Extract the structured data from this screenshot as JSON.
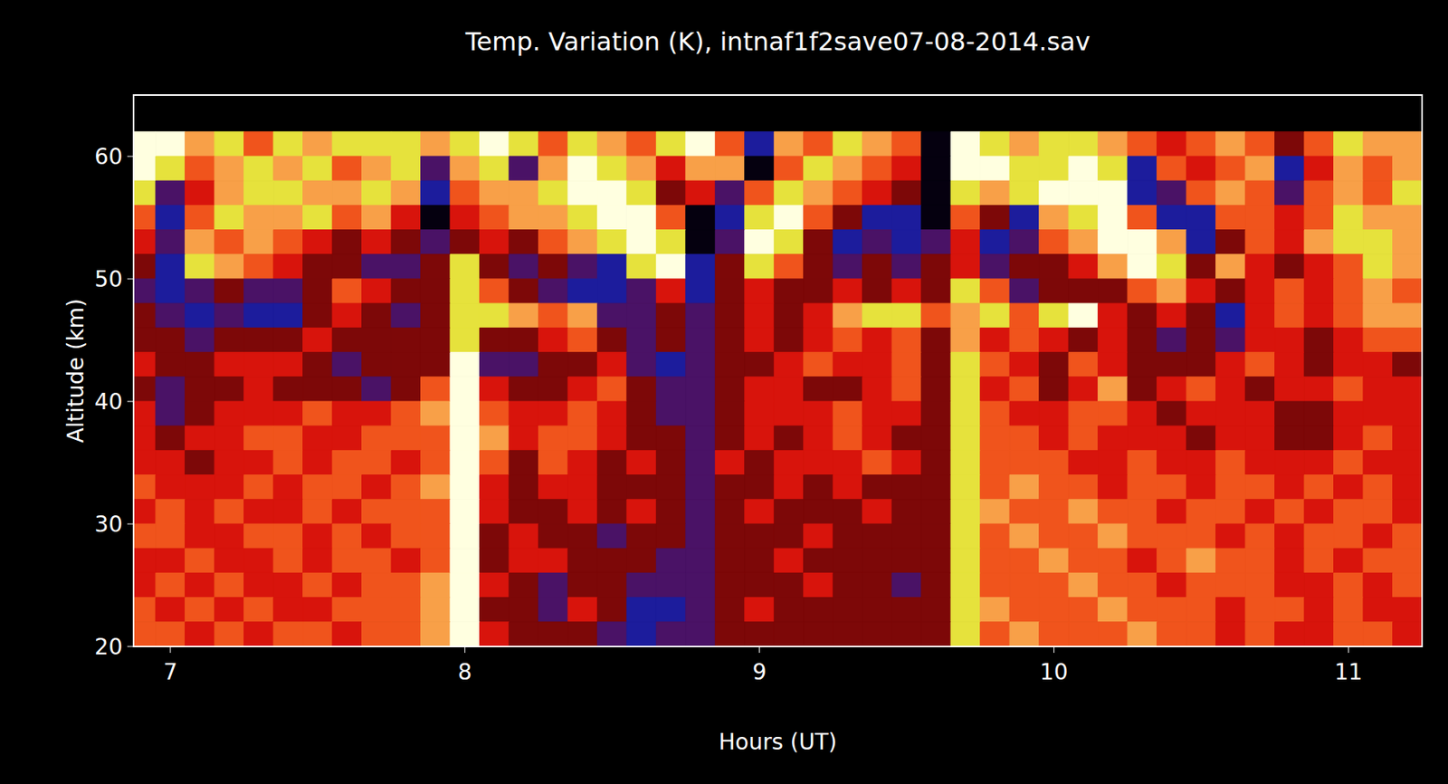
{
  "chart_data": {
    "type": "heatmap",
    "title": "Temp. Variation (K), intnaf1f2save07-08-2014.sav",
    "x_label": "Hours (UT)",
    "y_label": "Altitude (km)",
    "xlim": [
      6.875,
      11.25
    ],
    "xticks": [
      7,
      8,
      9,
      10,
      11
    ],
    "ylim": [
      20,
      65
    ],
    "yticks": [
      20,
      30,
      40,
      50,
      60
    ],
    "zlim": [
      -4,
      4
    ],
    "x": [
      6.9,
      7,
      7.1,
      7.2,
      7.3,
      7.4,
      7.5,
      7.6,
      7.7,
      7.8,
      7.9,
      8,
      8.1,
      8.2,
      8.3,
      8.4,
      8.5,
      8.6,
      8.7,
      8.8,
      8.9,
      9,
      9.1,
      9.2,
      9.3,
      9.4,
      9.5,
      9.6,
      9.7,
      9.8,
      9.9,
      10,
      10.1,
      10.2,
      10.3,
      10.4,
      10.5,
      10.6,
      10.7,
      10.8,
      10.9,
      11,
      11.1,
      11.2
    ],
    "y": [
      61,
      59,
      57,
      55,
      53,
      51,
      49,
      47,
      45,
      43,
      41,
      39,
      37,
      35,
      33,
      31,
      29,
      27,
      25,
      23,
      21
    ],
    "values": [
      [
        4,
        4,
        2,
        3,
        1,
        3,
        2,
        3,
        3,
        3,
        2,
        3,
        4,
        3,
        1,
        3,
        2,
        1,
        3,
        4,
        1,
        -3,
        2,
        1,
        3,
        2,
        1,
        -4,
        4,
        3,
        2,
        3,
        3,
        2,
        1,
        0,
        1,
        2,
        1,
        -1,
        1,
        3,
        2,
        2
      ],
      [
        4,
        3,
        1,
        2,
        3,
        2,
        3,
        1,
        2,
        3,
        -2,
        2,
        3,
        -2,
        2,
        4,
        3,
        2,
        0,
        2,
        2,
        -4,
        1,
        3,
        2,
        1,
        0,
        -4,
        4,
        4,
        3,
        3,
        4,
        3,
        -3,
        1,
        0,
        1,
        2,
        -3,
        0,
        2,
        1,
        2
      ],
      [
        3,
        -2,
        0,
        2,
        3,
        3,
        2,
        2,
        3,
        2,
        -3,
        1,
        2,
        2,
        3,
        4,
        4,
        3,
        -1,
        0,
        -2,
        1,
        3,
        2,
        1,
        0,
        -1,
        -4,
        3,
        2,
        3,
        4,
        4,
        4,
        -3,
        -2,
        1,
        2,
        1,
        -2,
        1,
        2,
        1,
        3
      ],
      [
        1,
        -3,
        1,
        3,
        2,
        2,
        3,
        1,
        2,
        0,
        -4,
        0,
        1,
        2,
        2,
        3,
        4,
        4,
        1,
        -4,
        -3,
        3,
        4,
        1,
        -1,
        -3,
        -3,
        -4,
        1,
        -1,
        -3,
        2,
        3,
        4,
        1,
        -3,
        -3,
        1,
        1,
        0,
        1,
        3,
        2,
        2
      ],
      [
        0,
        -2,
        2,
        1,
        2,
        1,
        0,
        -1,
        0,
        -1,
        -2,
        -1,
        0,
        -1,
        1,
        2,
        3,
        4,
        3,
        -4,
        -2,
        4,
        3,
        -1,
        -3,
        -2,
        -3,
        -2,
        0,
        -3,
        -2,
        1,
        2,
        4,
        4,
        2,
        -3,
        -1,
        1,
        0,
        2,
        3,
        3,
        2
      ],
      [
        -1,
        -3,
        3,
        2,
        1,
        0,
        -1,
        -1,
        -2,
        -2,
        -1,
        3,
        -1,
        -2,
        -1,
        -2,
        -3,
        3,
        4,
        -3,
        -1,
        3,
        1,
        -1,
        -2,
        -1,
        -2,
        -1,
        0,
        -2,
        -1,
        -1,
        0,
        2,
        4,
        3,
        -1,
        2,
        0,
        -1,
        0,
        1,
        3,
        2
      ],
      [
        -2,
        -3,
        -2,
        -1,
        -2,
        -2,
        -1,
        1,
        0,
        -1,
        -1,
        3,
        1,
        -1,
        -2,
        -3,
        -3,
        -2,
        0,
        -3,
        -1,
        0,
        -1,
        -1,
        0,
        -1,
        0,
        -1,
        3,
        1,
        -2,
        -1,
        -1,
        -1,
        1,
        2,
        0,
        -1,
        0,
        1,
        0,
        1,
        2,
        1
      ],
      [
        -1,
        -2,
        -3,
        -2,
        -3,
        -3,
        -1,
        0,
        -1,
        -2,
        -1,
        3,
        3,
        2,
        1,
        2,
        -2,
        -2,
        -1,
        -2,
        -1,
        0,
        -1,
        0,
        2,
        3,
        3,
        1,
        2,
        3,
        1,
        3,
        4,
        0,
        -1,
        0,
        -1,
        -3,
        0,
        1,
        0,
        1,
        2,
        2
      ],
      [
        -1,
        -1,
        -2,
        -1,
        -1,
        -1,
        0,
        -1,
        -1,
        -1,
        -1,
        3,
        -1,
        -1,
        0,
        1,
        -1,
        -2,
        -1,
        -2,
        -1,
        0,
        -1,
        0,
        1,
        0,
        1,
        -1,
        2,
        0,
        1,
        0,
        -1,
        0,
        -1,
        -2,
        -1,
        -2,
        0,
        0,
        -1,
        0,
        1,
        1
      ],
      [
        0,
        -1,
        -1,
        0,
        0,
        0,
        -1,
        -2,
        -1,
        -1,
        -1,
        4,
        -2,
        -2,
        -1,
        -1,
        0,
        -2,
        -3,
        -2,
        -1,
        -1,
        0,
        1,
        0,
        0,
        1,
        -1,
        3,
        1,
        0,
        -1,
        1,
        0,
        -1,
        -1,
        -1,
        0,
        1,
        0,
        -1,
        0,
        0,
        -1
      ],
      [
        -1,
        -2,
        -1,
        -1,
        0,
        -1,
        -1,
        -1,
        -2,
        -1,
        1,
        4,
        0,
        -1,
        -1,
        0,
        1,
        -1,
        -2,
        -2,
        -1,
        0,
        0,
        -1,
        -1,
        0,
        1,
        -1,
        3,
        0,
        1,
        -1,
        0,
        2,
        -1,
        0,
        1,
        0,
        -1,
        0,
        0,
        1,
        0,
        0
      ],
      [
        0,
        -2,
        -1,
        0,
        0,
        0,
        1,
        0,
        0,
        1,
        2,
        4,
        1,
        0,
        0,
        1,
        0,
        -1,
        -2,
        -2,
        -1,
        0,
        0,
        0,
        1,
        0,
        0,
        -1,
        3,
        1,
        0,
        0,
        1,
        1,
        0,
        -1,
        0,
        0,
        0,
        -1,
        -1,
        0,
        0,
        0
      ],
      [
        0,
        -1,
        0,
        0,
        1,
        1,
        0,
        0,
        1,
        1,
        1,
        4,
        2,
        0,
        1,
        1,
        0,
        -1,
        -1,
        -2,
        -1,
        0,
        -1,
        0,
        1,
        0,
        -1,
        -1,
        3,
        1,
        1,
        0,
        1,
        0,
        0,
        0,
        -1,
        0,
        0,
        -1,
        -1,
        0,
        1,
        0
      ],
      [
        0,
        0,
        -1,
        0,
        0,
        1,
        0,
        1,
        1,
        0,
        1,
        4,
        1,
        -1,
        1,
        0,
        -1,
        0,
        -1,
        -2,
        0,
        -1,
        0,
        0,
        0,
        1,
        0,
        -1,
        3,
        1,
        1,
        1,
        0,
        0,
        1,
        0,
        0,
        1,
        0,
        0,
        0,
        1,
        0,
        0
      ],
      [
        1,
        0,
        0,
        0,
        1,
        0,
        1,
        1,
        0,
        1,
        2,
        4,
        0,
        -1,
        0,
        0,
        -1,
        -1,
        -1,
        -2,
        -1,
        -1,
        0,
        -1,
        0,
        -1,
        -1,
        -1,
        3,
        1,
        2,
        1,
        1,
        0,
        1,
        1,
        0,
        1,
        1,
        0,
        1,
        0,
        1,
        0
      ],
      [
        0,
        1,
        0,
        1,
        0,
        0,
        1,
        0,
        1,
        1,
        1,
        4,
        0,
        -1,
        -1,
        0,
        -1,
        0,
        -1,
        -2,
        -1,
        0,
        -1,
        -1,
        -1,
        0,
        -1,
        -1,
        3,
        2,
        1,
        1,
        2,
        1,
        1,
        0,
        1,
        1,
        0,
        1,
        0,
        1,
        1,
        0
      ],
      [
        1,
        1,
        0,
        0,
        1,
        1,
        0,
        1,
        0,
        1,
        1,
        4,
        -1,
        0,
        -1,
        -1,
        -2,
        -1,
        -1,
        -2,
        -1,
        -1,
        -1,
        0,
        -1,
        -1,
        -1,
        -1,
        3,
        1,
        2,
        1,
        1,
        2,
        1,
        1,
        1,
        0,
        1,
        0,
        1,
        1,
        0,
        1
      ],
      [
        0,
        0,
        1,
        0,
        0,
        1,
        0,
        1,
        1,
        0,
        1,
        4,
        -1,
        0,
        0,
        -1,
        -1,
        -1,
        -2,
        -2,
        -1,
        -1,
        0,
        -1,
        -1,
        -1,
        -1,
        -1,
        3,
        1,
        1,
        2,
        1,
        1,
        0,
        1,
        2,
        1,
        1,
        0,
        1,
        0,
        1,
        1
      ],
      [
        0,
        1,
        0,
        1,
        0,
        0,
        1,
        0,
        1,
        1,
        2,
        4,
        0,
        -1,
        -2,
        -1,
        -1,
        -2,
        -2,
        -2,
        -1,
        -1,
        -1,
        0,
        -1,
        -1,
        -2,
        -1,
        3,
        1,
        1,
        1,
        2,
        1,
        1,
        0,
        1,
        1,
        1,
        0,
        0,
        1,
        0,
        1
      ],
      [
        1,
        0,
        1,
        0,
        1,
        0,
        0,
        1,
        1,
        1,
        2,
        4,
        -1,
        -1,
        -2,
        0,
        -1,
        -3,
        -3,
        -2,
        -1,
        0,
        -1,
        -1,
        -1,
        -1,
        -1,
        -1,
        3,
        2,
        1,
        1,
        1,
        2,
        1,
        1,
        1,
        0,
        1,
        1,
        0,
        1,
        0,
        0
      ],
      [
        1,
        1,
        0,
        1,
        0,
        1,
        1,
        0,
        1,
        1,
        2,
        4,
        0,
        -1,
        -1,
        -1,
        -2,
        -3,
        -2,
        -2,
        -1,
        -1,
        -1,
        -1,
        -1,
        -1,
        -1,
        -1,
        3,
        1,
        2,
        1,
        1,
        1,
        2,
        1,
        1,
        0,
        1,
        0,
        0,
        1,
        1,
        0
      ]
    ]
  }
}
